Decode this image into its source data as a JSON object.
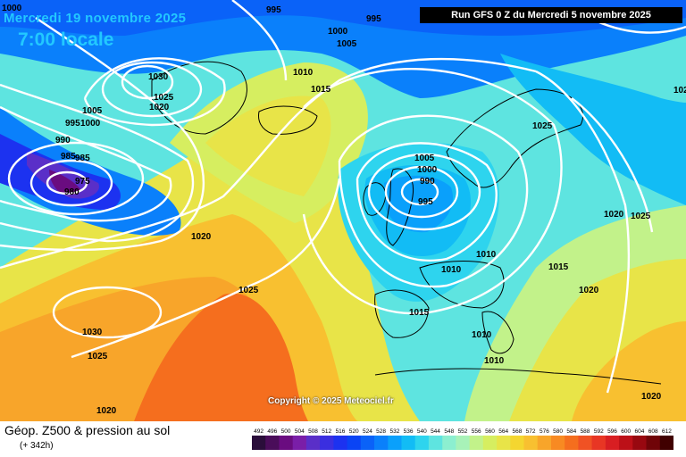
{
  "header": {
    "valid_date": "Mercredi 19 novembre 2025",
    "local_time": "7:00 locale",
    "run_info": "Run GFS 0 Z du Mercredi 5 novembre 2025"
  },
  "watermark": "Copyright © 2025 Meteociel.fr",
  "footer": {
    "title": "Géop. Z500 & pression au sol",
    "lead_time": "(+ 342h)"
  },
  "scale": {
    "values": [
      "492",
      "496",
      "500",
      "504",
      "508",
      "512",
      "516",
      "520",
      "524",
      "528",
      "532",
      "536",
      "540",
      "544",
      "548",
      "552",
      "556",
      "560",
      "564",
      "568",
      "572",
      "576",
      "580",
      "584",
      "588",
      "592",
      "596",
      "600",
      "604",
      "608",
      "612"
    ],
    "colors": [
      "#2a0e3a",
      "#4a0d5a",
      "#6a0c80",
      "#7a1ea8",
      "#5a2fc8",
      "#3a2fe0",
      "#1c32f0",
      "#0a44f5",
      "#0a62f8",
      "#0a80fb",
      "#0aa0fb",
      "#12bcf5",
      "#2ed4ee",
      "#5ee4e0",
      "#8cefd0",
      "#a8f2b8",
      "#c2f28a",
      "#d6ee60",
      "#e8e448",
      "#f4d630",
      "#f8c030",
      "#f8a52a",
      "#f88a22",
      "#f56e1e",
      "#f05224",
      "#e83624",
      "#d81e22",
      "#bc1018",
      "#980810",
      "#700408",
      "#400000"
    ]
  },
  "isobar_labels": [
    {
      "text": "1000"
    },
    {
      "text": "995"
    },
    {
      "text": "995"
    },
    {
      "text": "1000"
    },
    {
      "text": "1005"
    },
    {
      "text": "1030"
    },
    {
      "text": "1025"
    },
    {
      "text": "1020"
    },
    {
      "text": "1005"
    },
    {
      "text": "995"
    },
    {
      "text": "1000"
    },
    {
      "text": "990"
    },
    {
      "text": "985"
    },
    {
      "text": "985"
    },
    {
      "text": "975"
    },
    {
      "text": "980"
    },
    {
      "text": "1010"
    },
    {
      "text": "1015"
    },
    {
      "text": "1005"
    },
    {
      "text": "1000"
    },
    {
      "text": "990"
    },
    {
      "text": "995"
    },
    {
      "text": "1025"
    },
    {
      "text": "1020"
    },
    {
      "text": "1025"
    },
    {
      "text": "1020"
    },
    {
      "text": "1010"
    },
    {
      "text": "1010"
    },
    {
      "text": "1015"
    },
    {
      "text": "1020"
    },
    {
      "text": "1025"
    },
    {
      "text": "1015"
    },
    {
      "text": "1010"
    },
    {
      "text": "1030"
    },
    {
      "text": "1025"
    },
    {
      "text": "1010"
    },
    {
      "text": "1020"
    },
    {
      "text": "1020"
    },
    {
      "text": "1025"
    }
  ]
}
